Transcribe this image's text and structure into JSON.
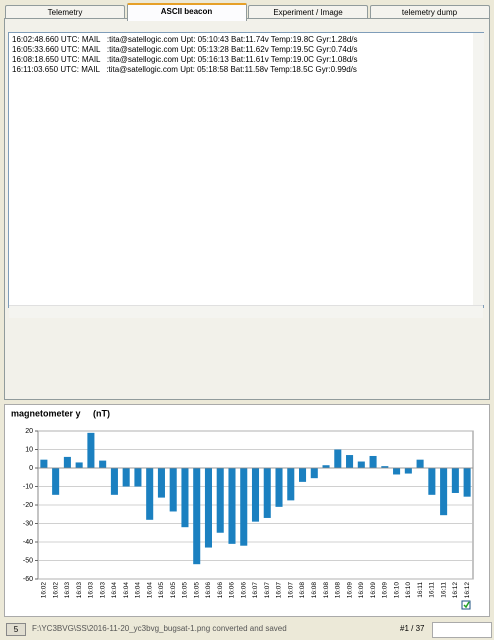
{
  "tabs": [
    "Telemetry",
    "ASCII beacon",
    "Experiment / Image",
    "telemetry dump"
  ],
  "selected_tab": 1,
  "log": [
    "16:02:48.660 UTC: MAIL   :tita@satellogic.com Upt: 05:10:43 Bat:11.74v Temp:19.8C Gyr:1.28d/s",
    "16:05:33.660 UTC: MAIL   :tita@satellogic.com Upt: 05:13:28 Bat:11.62v Temp:19.5C Gyr:0.74d/s",
    "16:08:18.650 UTC: MAIL   :tita@satellogic.com Upt: 05:16:13 Bat:11.61v Temp:19.0C Gyr:1.08d/s",
    "16:11:03.650 UTC: MAIL   :tita@satellogic.com Upt: 05:18:58 Bat:11.58v Temp:18.5C Gyr:0.99d/s"
  ],
  "chart_data": {
    "type": "bar",
    "title": "magnetometer y     (nT)",
    "categories": [
      "16:02",
      "16:02",
      "16:03",
      "16:03",
      "16:03",
      "16:03",
      "16:04",
      "16:04",
      "16:04",
      "16:04",
      "16:05",
      "16:05",
      "16:05",
      "16:05",
      "16:06",
      "16:06",
      "16:06",
      "16:06",
      "16:07",
      "16:07",
      "16:07",
      "16:07",
      "16:08",
      "16:08",
      "16:08",
      "16:08",
      "16:09",
      "16:09",
      "16:09",
      "16:09",
      "16:10",
      "16:10",
      "16:11",
      "16:11",
      "16:11",
      "16:12",
      "16:12"
    ],
    "values": [
      4.5,
      -14.5,
      6,
      3,
      19,
      4,
      -14.5,
      -10,
      -10,
      -28,
      -16,
      -23.5,
      -32,
      -52,
      -43,
      -35,
      -41,
      -42,
      -29,
      -27,
      -21,
      -17.5,
      -7.5,
      -5.5,
      1.5,
      10,
      7,
      3.5,
      6.5,
      1,
      -3.5,
      -3,
      4.5,
      -14.5,
      -25.5,
      -13.5,
      -15.5
    ],
    "color": "#1b80c0",
    "ylim": [
      -60,
      20
    ],
    "yticks": [
      -60,
      -50,
      -40,
      -30,
      -20,
      -10,
      0,
      10,
      20
    ],
    "grid": true
  },
  "status": {
    "button": "5",
    "message": "F:\\YC3BVG\\SS\\2016-11-20_yc3bvg_bugsat-1.png converted and saved",
    "counter": "#1 / 37"
  }
}
